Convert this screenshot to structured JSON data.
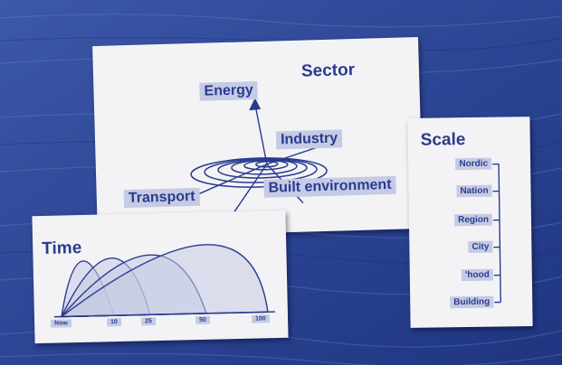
{
  "sector": {
    "title": "Sector",
    "labels": [
      "Energy",
      "Industry",
      "Transport",
      "Built environment"
    ]
  },
  "time": {
    "title": "Time",
    "ticks": [
      "Now",
      "10",
      "25",
      "50",
      "100"
    ]
  },
  "scale": {
    "title": "Scale",
    "levels": [
      "Nordic",
      "Nation",
      "Region",
      "City",
      "'hood",
      "Building"
    ]
  },
  "colors": {
    "ink": "#2a3b8f",
    "label_fill": "#c5cbe4",
    "card": "#f3f3f5",
    "background": "#2e4796"
  }
}
